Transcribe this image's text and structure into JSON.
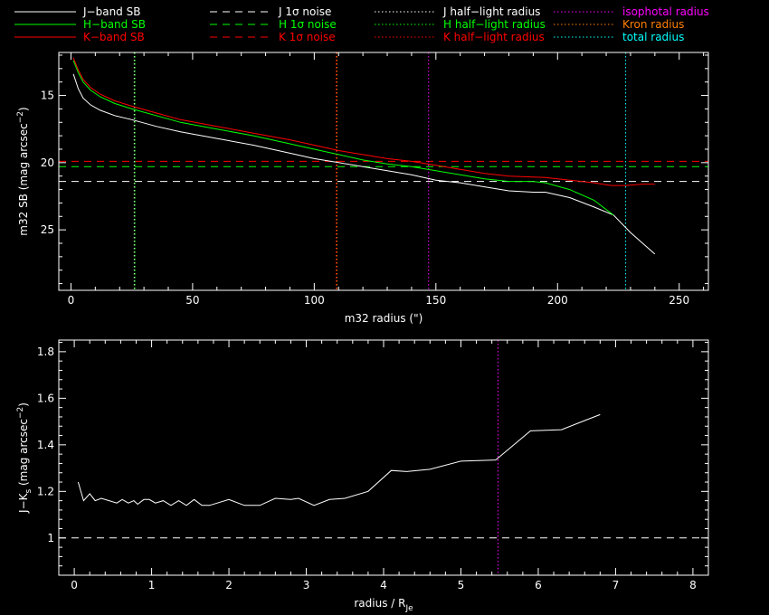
{
  "legend": {
    "items": [
      {
        "label": "J−band SB",
        "color": "#ffffff",
        "dash": "solid"
      },
      {
        "label": "H−band SB",
        "color": "#00ff00",
        "dash": "solid"
      },
      {
        "label": "K−band SB",
        "color": "#ff0000",
        "dash": "solid"
      },
      {
        "label": "J 1σ noise",
        "color": "#ffffff",
        "dash": "dashed"
      },
      {
        "label": "H 1σ noise",
        "color": "#00ff00",
        "dash": "dashed"
      },
      {
        "label": "K 1σ noise",
        "color": "#ff0000",
        "dash": "dashed"
      },
      {
        "label": "J half−light radius",
        "color": "#ffffff",
        "dash": "dotted"
      },
      {
        "label": "H half−light radius",
        "color": "#00ff00",
        "dash": "dotted"
      },
      {
        "label": "K half−light radius",
        "color": "#ff0000",
        "dash": "dotted"
      },
      {
        "label": "isophotal radius",
        "color": "#ff00ff",
        "dash": "dotted",
        "text_color": "#ff00ff"
      },
      {
        "label": "Kron radius",
        "color": "#ff7f00",
        "dash": "dotted",
        "text_color": "#ff7f00"
      },
      {
        "label": "total radius",
        "color": "#00ffff",
        "dash": "dotted",
        "text_color": "#00ffff"
      }
    ]
  },
  "chart_data": [
    {
      "type": "line",
      "xlabel": "m32 radius (\")",
      "ylabel": "m32 SB (mag arcsec",
      "ylabel_sup": "−2",
      "ylabel_close": ")",
      "xlim": [
        -5,
        262
      ],
      "ylim": [
        29.5,
        11.8
      ],
      "xticks": [
        0,
        50,
        100,
        150,
        200,
        250
      ],
      "yticks": [
        15,
        20,
        25
      ],
      "series": [
        {
          "name": "J−band SB",
          "color": "#ffffff",
          "dash": "solid",
          "x": [
            1,
            3,
            5,
            8,
            12,
            18,
            25,
            35,
            45,
            60,
            75,
            90,
            100,
            110,
            120,
            130,
            140,
            150,
            160,
            170,
            180,
            190,
            195,
            205,
            215,
            223,
            230,
            240
          ],
          "y": [
            13.4,
            14.5,
            15.2,
            15.7,
            16.1,
            16.5,
            16.8,
            17.3,
            17.7,
            18.2,
            18.7,
            19.3,
            19.7,
            20.0,
            20.3,
            20.6,
            20.9,
            21.3,
            21.5,
            21.8,
            22.1,
            22.2,
            22.2,
            22.6,
            23.3,
            23.9,
            25.2,
            26.8
          ]
        },
        {
          "name": "H−band SB",
          "color": "#00ff00",
          "dash": "solid",
          "x": [
            1,
            3,
            5,
            8,
            12,
            18,
            25,
            35,
            45,
            60,
            75,
            90,
            100,
            110,
            120,
            130,
            140,
            150,
            160,
            170,
            180,
            190,
            195,
            205,
            215,
            223
          ],
          "y": [
            12.4,
            13.3,
            14.0,
            14.6,
            15.1,
            15.6,
            16.0,
            16.5,
            17.0,
            17.5,
            18.0,
            18.6,
            19.0,
            19.4,
            19.8,
            20.1,
            20.3,
            20.6,
            20.9,
            21.2,
            21.4,
            21.4,
            21.5,
            22.0,
            22.8,
            23.9
          ]
        },
        {
          "name": "K−band SB",
          "color": "#ff0000",
          "dash": "solid",
          "x": [
            1,
            3,
            5,
            8,
            12,
            18,
            25,
            35,
            45,
            60,
            75,
            90,
            100,
            110,
            120,
            130,
            140,
            150,
            160,
            170,
            180,
            195,
            205,
            215,
            222,
            228,
            235,
            240
          ],
          "y": [
            12.2,
            13.1,
            13.8,
            14.4,
            14.9,
            15.4,
            15.8,
            16.3,
            16.8,
            17.3,
            17.8,
            18.3,
            18.7,
            19.1,
            19.4,
            19.7,
            19.9,
            20.2,
            20.5,
            20.8,
            21.0,
            21.1,
            21.3,
            21.5,
            21.7,
            21.7,
            21.6,
            21.6
          ]
        }
      ],
      "hlines": [
        {
          "name": "J 1σ noise",
          "y": 21.4,
          "color": "#ffffff",
          "dash": "dashed"
        },
        {
          "name": "H 1σ noise",
          "y": 20.3,
          "color": "#00ff00",
          "dash": "dashed"
        },
        {
          "name": "K 1σ noise",
          "y": 19.9,
          "color": "#ff0000",
          "dash": "dashed"
        }
      ],
      "vlines": [
        {
          "name": "J half−light radius",
          "x": 26,
          "color": "#ffffff",
          "dash": "dotted"
        },
        {
          "name": "H half−light radius",
          "x": 26.3,
          "color": "#00ff00",
          "dash": "dotted"
        },
        {
          "name": "K half−light radius",
          "x": 109,
          "color": "#ff0000",
          "dash": "dotted"
        },
        {
          "name": "Kron radius",
          "x": 109.3,
          "color": "#ff7f00",
          "dash": "dotted"
        },
        {
          "name": "isophotal radius",
          "x": 147,
          "color": "#ff00ff",
          "dash": "dotted"
        },
        {
          "name": "total radius",
          "x": 228,
          "color": "#00ffff",
          "dash": "dotted"
        }
      ]
    },
    {
      "type": "line",
      "xlabel": "radius / R",
      "xlabel_sub": "Je",
      "ylabel": "J−K",
      "ylabel_sub": "s",
      "ylabel_rest": " (mag arcsec",
      "ylabel_sup": "−2",
      "ylabel_close": ")",
      "xlim": [
        -0.2,
        8.2
      ],
      "ylim": [
        0.84,
        1.85
      ],
      "xticks": [
        0,
        1,
        2,
        3,
        4,
        5,
        6,
        7,
        8
      ],
      "yticks": [
        1,
        1.2,
        1.4,
        1.6,
        1.8
      ],
      "ytick_labels": [
        "1",
        "1.2",
        "1.4",
        "1.6",
        "1.8"
      ],
      "series": [
        {
          "name": "J−K color",
          "color": "#ffffff",
          "dash": "solid",
          "x": [
            0.05,
            0.12,
            0.2,
            0.27,
            0.35,
            0.45,
            0.55,
            0.62,
            0.7,
            0.77,
            0.82,
            0.9,
            0.97,
            1.05,
            1.15,
            1.25,
            1.35,
            1.45,
            1.55,
            1.65,
            1.75,
            2.0,
            2.2,
            2.4,
            2.6,
            2.8,
            2.9,
            3.1,
            3.3,
            3.5,
            3.8,
            4.1,
            4.3,
            4.6,
            5.0,
            5.45,
            5.9,
            6.3,
            6.8
          ],
          "y": [
            1.24,
            1.16,
            1.19,
            1.16,
            1.17,
            1.16,
            1.15,
            1.165,
            1.15,
            1.16,
            1.145,
            1.165,
            1.165,
            1.15,
            1.16,
            1.14,
            1.16,
            1.14,
            1.165,
            1.14,
            1.14,
            1.165,
            1.14,
            1.14,
            1.17,
            1.165,
            1.17,
            1.14,
            1.165,
            1.17,
            1.2,
            1.29,
            1.285,
            1.295,
            1.33,
            1.335,
            1.46,
            1.465,
            1.53
          ]
        }
      ],
      "hlines": [
        {
          "name": "reference",
          "y": 1.0,
          "color": "#ffffff",
          "dash": "dashed"
        }
      ],
      "vlines": [
        {
          "name": "isophotal radius",
          "x": 5.48,
          "color": "#ff00ff",
          "dash": "dotted"
        }
      ]
    }
  ]
}
